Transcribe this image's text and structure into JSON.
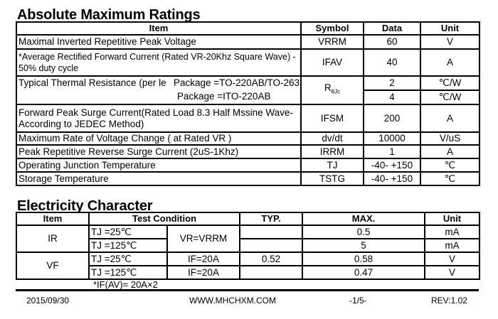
{
  "amr": {
    "title": "Absolute Maximum Ratings",
    "headers": [
      "Item",
      "Symbol",
      "Data",
      "Unit"
    ],
    "rows": [
      {
        "item": "Maximal Inverted Repetitive  Peak Voltage",
        "symbol": "VRRM",
        "data": "60",
        "unit": "V"
      },
      {
        "item": "*Average Rectified Forward Current (Rated VR-20Khz Square Wave) - 50% duty cycle",
        "symbol": "IFAV",
        "data": "40",
        "unit": "A"
      },
      {
        "item": "Typical Thermal Resistance (per le",
        "pkg1": "Package =TO-220AB/TO-263",
        "pkg2": "Package =ITO-220AB",
        "symbol_main": "R",
        "symbol_sub": "θJc",
        "data1": "2",
        "unit1": "℃/W",
        "data2": "4",
        "unit2": "℃/W"
      },
      {
        "item": "Forward Peak Surge Current(Rated Load 8.3 Half Mssine Wave-According to JEDEC Method)",
        "symbol": "IFSM",
        "data": "200",
        "unit": "A"
      },
      {
        "item": "Maximum Rate of Voltage Change ( at Rated VR )",
        "symbol": "dv/dt",
        "data": "10000",
        "unit": "V/uS"
      },
      {
        "item": "Peak Repetitive Reverse Surge Current (2uS-1Khz)",
        "symbol": "IRRM",
        "data": "1",
        "unit": "A"
      },
      {
        "item": "Operating Junction Temperature",
        "symbol": "TJ",
        "data": "-40- +150",
        "unit": "℃"
      },
      {
        "item": "Storage Temperature",
        "symbol": "TSTG",
        "data": "-40- +150",
        "unit": "℃"
      }
    ]
  },
  "ec": {
    "title": "Electricity Character",
    "headers": [
      "Item",
      "Test  Condition",
      "TYP.",
      "MAX.",
      "Unit"
    ],
    "ir": {
      "item": "IR",
      "t1": "TJ =25℃",
      "t2": "TJ =125℃",
      "cond": "VR=VRRM",
      "max1": "0.5",
      "max2": "5",
      "unit1": "mA",
      "unit2": "mA"
    },
    "vf": {
      "item": "VF",
      "t1": "TJ =25℃",
      "t2": "TJ =125℃",
      "cond1": "IF=20A",
      "cond2": "IF=20A",
      "typ1": "0.52",
      "max1": "0.58",
      "max2": "0.47",
      "unit1": "V",
      "unit2": "V"
    },
    "note": "*IF(AV)= 20A×2"
  },
  "footer": {
    "date": "2015/09/30",
    "url": "WWW.MHCHXM.COM",
    "page": "-1/5-",
    "rev": "REV:1.02"
  }
}
